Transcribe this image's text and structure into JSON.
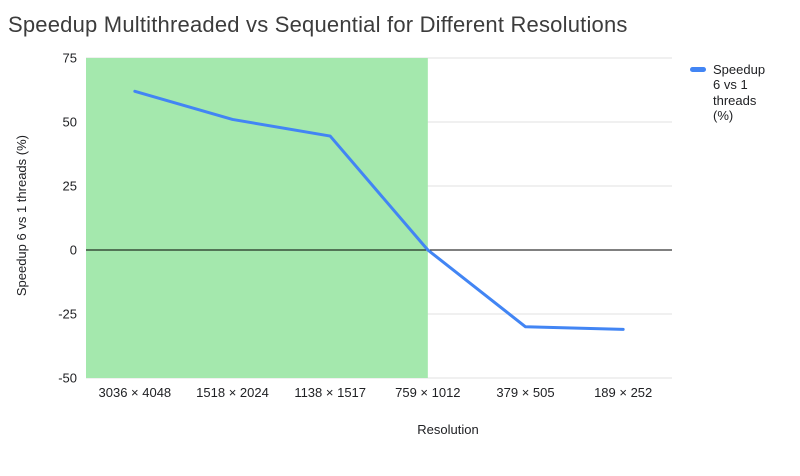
{
  "chart_data": {
    "type": "line",
    "title": "Speedup Multithreaded vs Sequential for Different Resolutions",
    "xlabel": "Resolution",
    "ylabel": "Speedup 6 vs 1 threads (%)",
    "categories": [
      "3036 × 4048",
      "1518 × 2024",
      "1138 × 1517",
      "759 × 1012",
      "379 × 505",
      "189 × 252"
    ],
    "series": [
      {
        "name": "Speedup 6 vs 1 threads (%)",
        "color": "#4285f4",
        "values": [
          62,
          51,
          44.5,
          0,
          -30,
          -31
        ]
      }
    ],
    "ylim": [
      -50,
      75
    ],
    "yticks": [
      75,
      50,
      25,
      0,
      -25,
      -50
    ],
    "grid": true,
    "legend_position": "right",
    "highlight_region": {
      "from": "plot-left",
      "to_category_index": 3,
      "color": "#a4e8ad"
    },
    "colors": {
      "gridline": "#e2e2e2",
      "zero_line": "#000000",
      "tick_text": "#202124",
      "title_text": "#3c3c3c"
    }
  }
}
